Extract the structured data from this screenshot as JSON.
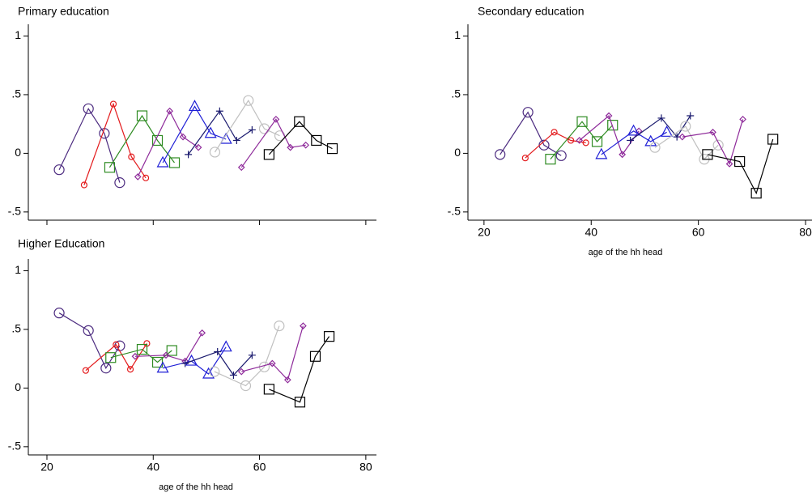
{
  "chart_data": [
    {
      "type": "line",
      "title": "Primary education",
      "xlim": [
        16.5,
        82
      ],
      "ylim": [
        -0.57,
        1.1
      ],
      "xticks": [
        20,
        40,
        60,
        80
      ],
      "show_xtick_labels": false,
      "yticks": [
        {
          "value": -0.5,
          "label": "-.5"
        },
        0,
        {
          "value": 0.5,
          "label": ".5"
        },
        1
      ],
      "series": [
        {
          "color": "#4b2a7f",
          "marker": "circle",
          "x": [
            22.3,
            27.8,
            30.8,
            33.7
          ],
          "values": [
            -0.14,
            0.38,
            0.17,
            -0.25
          ]
        },
        {
          "color": "#e31a1c",
          "marker": "small-circle",
          "x": [
            27,
            32.5,
            35.9,
            38.6
          ],
          "values": [
            -0.27,
            0.42,
            -0.03,
            -0.21
          ]
        },
        {
          "color": "#2e8b22",
          "marker": "square",
          "x": [
            31.8,
            37.9,
            40.8,
            44
          ],
          "values": [
            -0.12,
            0.32,
            0.11,
            -0.08
          ]
        },
        {
          "color": "#8e2a9a",
          "marker": "diamond",
          "x": [
            37.1,
            43.1,
            45.6,
            48.5
          ],
          "values": [
            -0.2,
            0.36,
            0.14,
            0.05
          ]
        },
        {
          "color": "#1f1fd6",
          "marker": "triangle",
          "x": [
            41.8,
            47.8,
            50.8,
            53.7
          ],
          "values": [
            -0.08,
            0.4,
            0.17,
            0.12
          ]
        },
        {
          "color": "#1a1a6e",
          "marker": "plus",
          "x": [
            46.6,
            52.5,
            55.7,
            58.6
          ],
          "values": [
            -0.01,
            0.36,
            0.11,
            0.2
          ]
        },
        {
          "color": "#c0c0c0",
          "marker": "circle",
          "x": [
            51.6,
            57.9,
            60.9,
            63.8
          ],
          "values": [
            0.01,
            0.45,
            0.21,
            0.15
          ]
        },
        {
          "color": "#8e2a9a",
          "marker": "diamond",
          "x": [
            56.6,
            63.1,
            65.8,
            68.7
          ],
          "values": [
            -0.12,
            0.29,
            0.05,
            0.07
          ]
        },
        {
          "color": "#000000",
          "marker": "square",
          "x": [
            61.8,
            67.5,
            70.7,
            73.7
          ],
          "values": [
            -0.01,
            0.27,
            0.11,
            0.04
          ]
        }
      ]
    },
    {
      "type": "line",
      "title": "Secondary education",
      "x_label": "age of the hh head",
      "xlim": [
        17,
        81.2
      ],
      "ylim": [
        -0.57,
        1.1
      ],
      "xticks": [
        20,
        40,
        60,
        80
      ],
      "show_xtick_labels": true,
      "yticks": [
        {
          "value": -0.5,
          "label": "-.5"
        },
        0,
        {
          "value": 0.5,
          "label": ".5"
        },
        1
      ],
      "series": [
        {
          "color": "#4b2a7f",
          "marker": "circle",
          "x": [
            23,
            28.2,
            31.2,
            34.4
          ],
          "values": [
            -0.01,
            0.35,
            0.07,
            -0.02
          ]
        },
        {
          "color": "#e31a1c",
          "marker": "small-circle",
          "x": [
            27.7,
            33.1,
            36.2,
            39
          ],
          "values": [
            -0.04,
            0.18,
            0.11,
            0.09
          ]
        },
        {
          "color": "#2e8b22",
          "marker": "square",
          "x": [
            32.4,
            38.3,
            41.1,
            44
          ],
          "values": [
            -0.05,
            0.27,
            0.1,
            0.24
          ]
        },
        {
          "color": "#8e2a9a",
          "marker": "diamond",
          "x": [
            37.8,
            43.3,
            45.8,
            48.9
          ],
          "values": [
            0.11,
            0.32,
            -0.01,
            0.19
          ]
        },
        {
          "color": "#1f1fd6",
          "marker": "triangle",
          "x": [
            41.9,
            47.9,
            51.1,
            54.1
          ],
          "values": [
            -0.01,
            0.19,
            0.1,
            0.18
          ]
        },
        {
          "color": "#1a1a6e",
          "marker": "plus",
          "x": [
            47.3,
            53.1,
            56,
            58.5
          ],
          "values": [
            0.11,
            0.3,
            0.14,
            0.32
          ]
        },
        {
          "color": "#c0c0c0",
          "marker": "circle",
          "x": [
            51.9,
            57.6,
            61.1,
            63.7
          ],
          "values": [
            0.05,
            0.23,
            -0.05,
            0.07
          ]
        },
        {
          "color": "#8e2a9a",
          "marker": "diamond",
          "x": [
            57,
            62.7,
            65.8,
            68.3
          ],
          "values": [
            0.14,
            0.18,
            -0.09,
            0.29
          ]
        },
        {
          "color": "#000000",
          "marker": "square",
          "x": [
            61.7,
            67.7,
            70.8,
            73.9
          ],
          "values": [
            -0.01,
            -0.07,
            -0.34,
            0.12
          ]
        }
      ]
    },
    {
      "type": "line",
      "title": "Higher Education",
      "x_label": "age of the hh head",
      "xlim": [
        16.5,
        82
      ],
      "ylim": [
        -0.57,
        1.1
      ],
      "xticks": [
        20,
        40,
        60,
        80
      ],
      "show_xtick_labels": true,
      "yticks": [
        {
          "value": -0.5,
          "label": "-.5"
        },
        0,
        {
          "value": 0.5,
          "label": ".5"
        },
        1
      ],
      "series": [
        {
          "color": "#4b2a7f",
          "marker": "circle",
          "x": [
            22.3,
            27.8,
            31.1,
            33.7
          ],
          "values": [
            0.64,
            0.49,
            0.17,
            0.36
          ]
        },
        {
          "color": "#e31a1c",
          "marker": "small-circle",
          "x": [
            27.3,
            33,
            35.7,
            38.8
          ],
          "values": [
            0.15,
            0.37,
            0.16,
            0.38
          ]
        },
        {
          "color": "#2e8b22",
          "marker": "square",
          "x": [
            32,
            37.9,
            40.8,
            43.5
          ],
          "values": [
            0.26,
            0.33,
            0.22,
            0.32
          ]
        },
        {
          "color": "#8e2a9a",
          "marker": "diamond",
          "x": [
            36.6,
            42.4,
            46,
            49.2
          ],
          "values": [
            0.27,
            0.28,
            0.23,
            0.47
          ]
        },
        {
          "color": "#1f1fd6",
          "marker": "triangle",
          "x": [
            41.8,
            47.2,
            50.4,
            53.7
          ],
          "values": [
            0.17,
            0.23,
            0.12,
            0.35
          ]
        },
        {
          "color": "#1a1a6e",
          "marker": "plus",
          "x": [
            46,
            52.1,
            55.1,
            58.6
          ],
          "values": [
            0.21,
            0.31,
            0.11,
            0.28
          ]
        },
        {
          "color": "#c0c0c0",
          "marker": "circle",
          "x": [
            51.5,
            57.4,
            60.9,
            63.7
          ],
          "values": [
            0.14,
            0.02,
            0.18,
            0.53
          ]
        },
        {
          "color": "#8e2a9a",
          "marker": "diamond",
          "x": [
            56.6,
            62.4,
            65.3,
            68.2
          ],
          "values": [
            0.14,
            0.21,
            0.07,
            0.53
          ]
        },
        {
          "color": "#000000",
          "marker": "square",
          "x": [
            61.8,
            67.6,
            70.5,
            73.1
          ],
          "values": [
            -0.01,
            -0.12,
            0.27,
            0.44
          ]
        }
      ]
    }
  ]
}
